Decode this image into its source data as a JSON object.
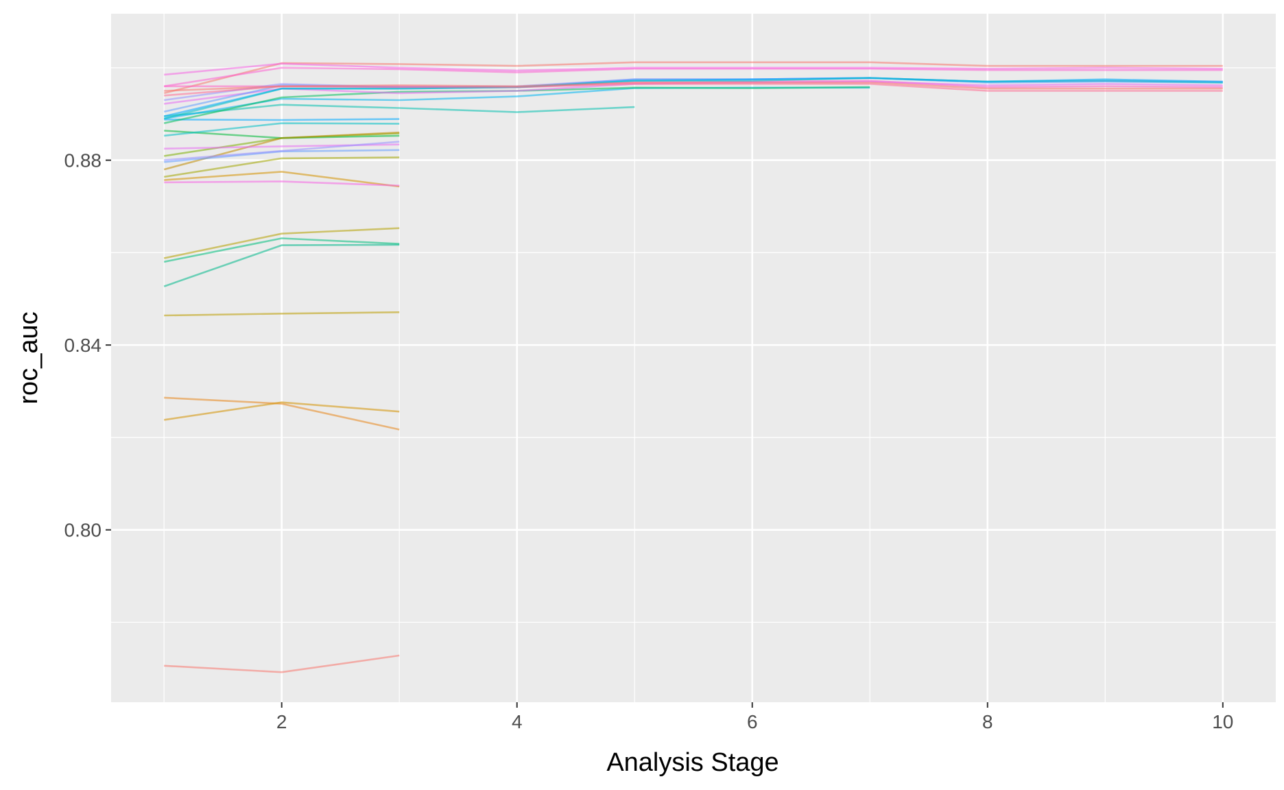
{
  "chart_data": {
    "type": "line",
    "title": "",
    "xlabel": "Analysis Stage",
    "ylabel": "roc_auc",
    "xlim": [
      0.55,
      10.45
    ],
    "ylim": [
      0.7627,
      0.9117
    ],
    "x_ticks": [
      2,
      4,
      6,
      8,
      10
    ],
    "x_tick_labels": [
      "2",
      "4",
      "6",
      "8",
      "10"
    ],
    "y_ticks": [
      0.8,
      0.84,
      0.88
    ],
    "y_tick_labels": [
      "0.80",
      "0.84",
      "0.88"
    ],
    "grid": true,
    "legend": "none",
    "colors": {
      "panel": "#ebebeb",
      "grid": "#ffffff",
      "tick_text": "#4d4d4d",
      "axis_title": "#000000"
    },
    "series": [
      {
        "color": "#f8766d",
        "x": [
          1,
          2,
          3
        ],
        "y": [
          0.7706,
          0.7692,
          0.7728
        ]
      },
      {
        "color": "#e7861b",
        "x": [
          1,
          2,
          3
        ],
        "y": [
          0.8286,
          0.8273,
          0.8217
        ]
      },
      {
        "color": "#d39200",
        "x": [
          1,
          2,
          3
        ],
        "y": [
          0.8238,
          0.8276,
          0.8256
        ]
      },
      {
        "color": "#bb9d00",
        "x": [
          1,
          2,
          3
        ],
        "y": [
          0.8464,
          0.8468,
          0.8471
        ]
      },
      {
        "color": "#b4a000",
        "x": [
          1,
          2,
          3
        ],
        "y": [
          0.8588,
          0.8641,
          0.8653
        ]
      },
      {
        "color": "#00bd7c",
        "x": [
          1,
          2,
          3
        ],
        "y": [
          0.858,
          0.8631,
          0.8619
        ]
      },
      {
        "color": "#00b88a",
        "x": [
          1,
          2,
          3
        ],
        "y": [
          0.8527,
          0.8616,
          0.8617
        ]
      },
      {
        "color": "#d39200",
        "x": [
          1,
          2,
          3
        ],
        "y": [
          0.8757,
          0.8775,
          0.8743
        ]
      },
      {
        "color": "#f564e3",
        "x": [
          1,
          2,
          3
        ],
        "y": [
          0.8752,
          0.8754,
          0.8745
        ]
      },
      {
        "color": "#a3a500",
        "x": [
          1,
          2,
          3
        ],
        "y": [
          0.8764,
          0.8804,
          0.8806
        ]
      },
      {
        "color": "#7cae00",
        "x": [
          1,
          2,
          3
        ],
        "y": [
          0.8809,
          0.8848,
          0.8858
        ]
      },
      {
        "color": "#00ba38",
        "x": [
          1,
          2,
          3
        ],
        "y": [
          0.8864,
          0.8848,
          0.8853
        ]
      },
      {
        "color": "#c08b00",
        "x": [
          1,
          2,
          3
        ],
        "y": [
          0.878,
          0.8848,
          0.886
        ]
      },
      {
        "color": "#619cff",
        "x": [
          1,
          2,
          3
        ],
        "y": [
          0.8796,
          0.8819,
          0.8822
        ]
      },
      {
        "color": "#e76bf3",
        "x": [
          1,
          2,
          3
        ],
        "y": [
          0.8825,
          0.883,
          0.8834
        ]
      },
      {
        "color": "#00a9ff",
        "x": [
          1,
          2,
          3
        ],
        "y": [
          0.8888,
          0.8887,
          0.8889
        ]
      },
      {
        "color": "#00bfc4",
        "x": [
          1,
          2,
          3
        ],
        "y": [
          0.8853,
          0.888,
          0.8879
        ]
      },
      {
        "color": "#9590ff",
        "x": [
          1,
          2,
          3
        ],
        "y": [
          0.88,
          0.882,
          0.884
        ]
      },
      {
        "color": "#00c0af",
        "x": [
          1,
          2,
          3,
          4,
          5
        ],
        "y": [
          0.8895,
          0.892,
          0.8913,
          0.8904,
          0.8915
        ]
      },
      {
        "color": "#00b4f0",
        "x": [
          1,
          2,
          3,
          4,
          5,
          6,
          7
        ],
        "y": [
          0.889,
          0.8933,
          0.893,
          0.8938,
          0.8956,
          0.8957,
          0.8957
        ]
      },
      {
        "color": "#00bd5c",
        "x": [
          1,
          2,
          3,
          4,
          5,
          6,
          7
        ],
        "y": [
          0.888,
          0.8936,
          0.8948,
          0.895,
          0.8957,
          0.8956,
          0.8958
        ]
      },
      {
        "color": "#f8766d",
        "x": [
          1,
          2,
          3,
          4,
          5,
          6,
          7,
          8,
          9,
          10
        ],
        "y": [
          0.8945,
          0.901,
          0.9008,
          0.9004,
          0.9012,
          0.9012,
          0.9012,
          0.9004,
          0.9004,
          0.9004
        ]
      },
      {
        "color": "#ff61c3",
        "x": [
          1,
          2,
          3,
          4,
          5,
          6,
          7,
          8,
          9,
          10
        ],
        "y": [
          0.896,
          0.896,
          0.896,
          0.8958,
          0.8968,
          0.897,
          0.8972,
          0.8958,
          0.896,
          0.8958
        ]
      },
      {
        "color": "#fd61d1",
        "x": [
          1,
          2,
          3,
          4,
          5,
          6,
          7,
          8,
          9,
          10
        ],
        "y": [
          0.896,
          0.9,
          0.8997,
          0.899,
          0.8998,
          0.8998,
          0.8998,
          0.8995,
          0.8995,
          0.8995
        ]
      },
      {
        "color": "#f564e3",
        "x": [
          1,
          2,
          3,
          4,
          5,
          6,
          7,
          8,
          9,
          10
        ],
        "y": [
          0.8985,
          0.9009,
          0.9,
          0.8994,
          0.9,
          0.9,
          0.9,
          0.8998,
          0.9,
          0.8998
        ]
      },
      {
        "color": "#e76bf3",
        "x": [
          1,
          2,
          3,
          4,
          5,
          6,
          7,
          8,
          9,
          10
        ],
        "y": [
          0.8922,
          0.8955,
          0.8945,
          0.895,
          0.8965,
          0.8968,
          0.897,
          0.8962,
          0.8965,
          0.8962
        ]
      },
      {
        "color": "#9590ff",
        "x": [
          1,
          2,
          3,
          4,
          5,
          6,
          7,
          8,
          9,
          10
        ],
        "y": [
          0.893,
          0.8965,
          0.8958,
          0.896,
          0.8975,
          0.8975,
          0.8978,
          0.897,
          0.8972,
          0.897
        ]
      },
      {
        "color": "#619cff",
        "x": [
          1,
          2,
          3,
          4,
          5,
          6,
          7,
          8,
          9,
          10
        ],
        "y": [
          0.8905,
          0.8962,
          0.8958,
          0.8958,
          0.8975,
          0.8975,
          0.8978,
          0.8968,
          0.897,
          0.8968
        ]
      },
      {
        "color": "#00a9ff",
        "x": [
          1,
          2,
          3,
          4,
          5,
          6,
          7,
          8,
          9,
          10
        ],
        "y": [
          0.8895,
          0.8955,
          0.8955,
          0.8958,
          0.8972,
          0.8975,
          0.8978,
          0.897,
          0.8975,
          0.897
        ]
      },
      {
        "color": "#00bfc4",
        "x": [
          1,
          2,
          3,
          4,
          5,
          6,
          7,
          8,
          9,
          10
        ],
        "y": [
          0.889,
          0.8955,
          0.8955,
          0.8958,
          0.8972,
          0.8972,
          0.8978,
          0.897,
          0.8972,
          0.8968
        ]
      },
      {
        "color": "#ff6c91",
        "x": [
          1,
          2,
          3,
          4,
          5,
          6,
          7,
          8,
          9,
          10
        ],
        "y": [
          0.894,
          0.896,
          0.8958,
          0.8958,
          0.8965,
          0.8965,
          0.8965,
          0.895,
          0.895,
          0.895
        ]
      },
      {
        "color": "#f8766d",
        "x": [
          1,
          2,
          3,
          4,
          5,
          6,
          7,
          8,
          9,
          10
        ],
        "y": [
          0.895,
          0.896,
          0.8962,
          0.896,
          0.8968,
          0.8968,
          0.8968,
          0.8955,
          0.8955,
          0.8955
        ]
      }
    ]
  }
}
